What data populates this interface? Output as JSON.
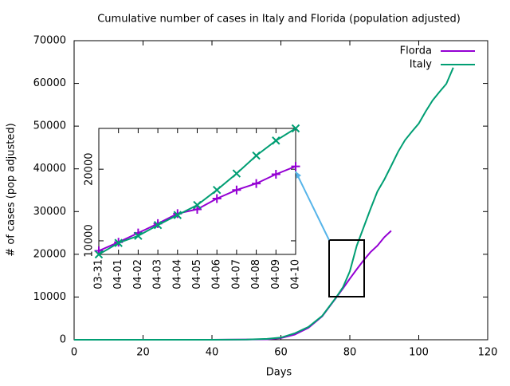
{
  "chart_data": [
    {
      "type": "line",
      "title": "Cumulative number of cases in Italy and Florida (population adjusted)",
      "xlabel": "Days",
      "ylabel": "# of cases (pop adjusted)",
      "xlim": [
        0,
        120
      ],
      "xticks": [
        0,
        20,
        40,
        60,
        80,
        100,
        120
      ],
      "ylim": [
        0,
        70000
      ],
      "yticks": [
        0,
        10000,
        20000,
        30000,
        40000,
        50000,
        60000,
        70000
      ],
      "legend": "top-right",
      "series": [
        {
          "name": "Florda",
          "color": "#9400d3",
          "x": [
            0,
            40,
            56,
            60,
            64,
            68,
            72,
            76,
            78,
            80,
            82,
            84,
            86,
            88,
            90,
            92
          ],
          "values": [
            0,
            0,
            100,
            400,
            1200,
            2800,
            5500,
            9800,
            12000,
            14300,
            16500,
            18600,
            20500,
            22000,
            24000,
            25500
          ]
        },
        {
          "name": "Italy",
          "color": "#009e73",
          "x": [
            0,
            20,
            40,
            50,
            56,
            60,
            64,
            68,
            72,
            76,
            78,
            80,
            82,
            84,
            86,
            88,
            90,
            92,
            94,
            96,
            98,
            100,
            102,
            104,
            106,
            108,
            110
          ],
          "values": [
            0,
            0,
            0,
            50,
            200,
            500,
            1500,
            3000,
            5600,
            9900,
            12300,
            16000,
            22000,
            26300,
            30600,
            34700,
            37500,
            40700,
            44000,
            46700,
            48700,
            50600,
            53400,
            56000,
            58000,
            59900,
            63700
          ]
        }
      ]
    },
    {
      "type": "line",
      "categories": [
        "03-31",
        "04-01",
        "04-02",
        "04-03",
        "04-04",
        "04-05",
        "04-06",
        "04-07",
        "04-08",
        "04-09",
        "04-10"
      ],
      "ylim": [
        8100,
        25700
      ],
      "yticks": [
        10000,
        20000
      ],
      "series": [
        {
          "color": "#9400d3",
          "marker": "+",
          "values": [
            8600,
            9800,
            11100,
            12400,
            13800,
            14400,
            15900,
            17100,
            18000,
            19300,
            20400
          ]
        },
        {
          "color": "#009e73",
          "marker": "x",
          "values": [
            8100,
            9700,
            10700,
            12200,
            13600,
            15000,
            17100,
            19400,
            21900,
            24000,
            25700
          ]
        }
      ]
    }
  ]
}
